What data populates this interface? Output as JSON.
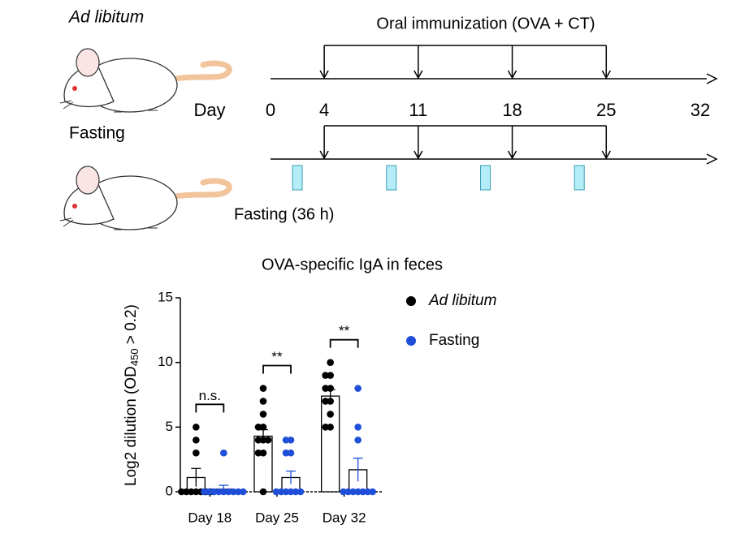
{
  "schematic": {
    "groups": [
      "Ad libitum",
      "Fasting"
    ],
    "timeline_title": "Oral immunization (OVA + CT)",
    "day_label": "Day",
    "days": [
      0,
      4,
      11,
      18,
      25,
      32
    ],
    "immunization_days": [
      4,
      11,
      18,
      25
    ],
    "fasting_days": [
      2,
      9,
      16,
      23
    ],
    "fasting_label": "Fasting (36 h)"
  },
  "chart_data": {
    "type": "bar-dot",
    "title": "OVA-specific IgA in feces",
    "y_label_parts": [
      "Log2 dilution (OD",
      "450",
      " > 0.2)"
    ],
    "categories": [
      "Day 18",
      "Day 25",
      "Day 32"
    ],
    "series": [
      {
        "name": "Ad libitum",
        "color": "#000000",
        "values": [
          1.1,
          4.3,
          7.4
        ],
        "errors": [
          0.7,
          0.5,
          0.5
        ],
        "points": [
          [
            5,
            4,
            3,
            0,
            0,
            0,
            0,
            0,
            0,
            0
          ],
          [
            8,
            7,
            6,
            5,
            5,
            4,
            4,
            4,
            3,
            3,
            0
          ],
          [
            10,
            9,
            9,
            8,
            8,
            7,
            7,
            6,
            5,
            5
          ]
        ]
      },
      {
        "name": "Fasting",
        "color": "#1f4fd8",
        "values": [
          0.2,
          1.1,
          1.7
        ],
        "errors": [
          0.3,
          0.5,
          0.9
        ],
        "points": [
          [
            3,
            0,
            0,
            0,
            0,
            0,
            0,
            0,
            0,
            0
          ],
          [
            4,
            4,
            3,
            3,
            0,
            0,
            0,
            0,
            0,
            0
          ],
          [
            8,
            5,
            4,
            0,
            0,
            0,
            0,
            0,
            0,
            0
          ]
        ]
      }
    ],
    "significance": [
      "n.s.",
      "**",
      "**"
    ],
    "ylim": [
      0,
      15
    ],
    "yticks": [
      0,
      5,
      10,
      15
    ]
  }
}
